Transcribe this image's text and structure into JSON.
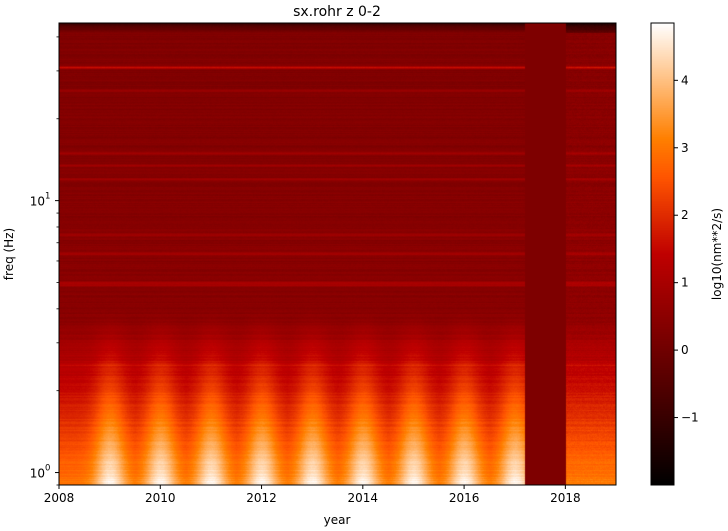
{
  "chart_data": {
    "type": "heatmap",
    "title": "sx.rohr z 0-2",
    "xlabel": "year",
    "ylabel": "freq (Hz)",
    "x_ticks": [
      "2008",
      "2010",
      "2012",
      "2014",
      "2016",
      "2018"
    ],
    "x_range": [
      2008.0,
      2019.0
    ],
    "y_scale": "log",
    "y_range": [
      0.9,
      45
    ],
    "y_ticks": [
      {
        "value": 1,
        "label": "10",
        "exp": "0"
      },
      {
        "value": 10,
        "label": "10",
        "exp": "1"
      }
    ],
    "colorbar": {
      "label": "log10(nm**2/s)",
      "range": [
        -2.0,
        4.85
      ],
      "ticks": [
        "−1",
        "0",
        "1",
        "2",
        "3",
        "4"
      ],
      "tick_values": [
        -1,
        0,
        1,
        2,
        3,
        4
      ],
      "colormap": "gist_heat"
    },
    "data_gap": {
      "start": 2017.2,
      "end": 2018.0,
      "value": 0.25
    },
    "seasonal_peak_years": [
      2009.0,
      2010.0,
      2011.0,
      2012.0,
      2013.0,
      2014.0,
      2015.0,
      2016.0,
      2017.0
    ],
    "bright_lines_hz": [
      31,
      25.5,
      15,
      13.5,
      12,
      7.5,
      6.4,
      5,
      4.9,
      2.5
    ],
    "grid": false
  }
}
